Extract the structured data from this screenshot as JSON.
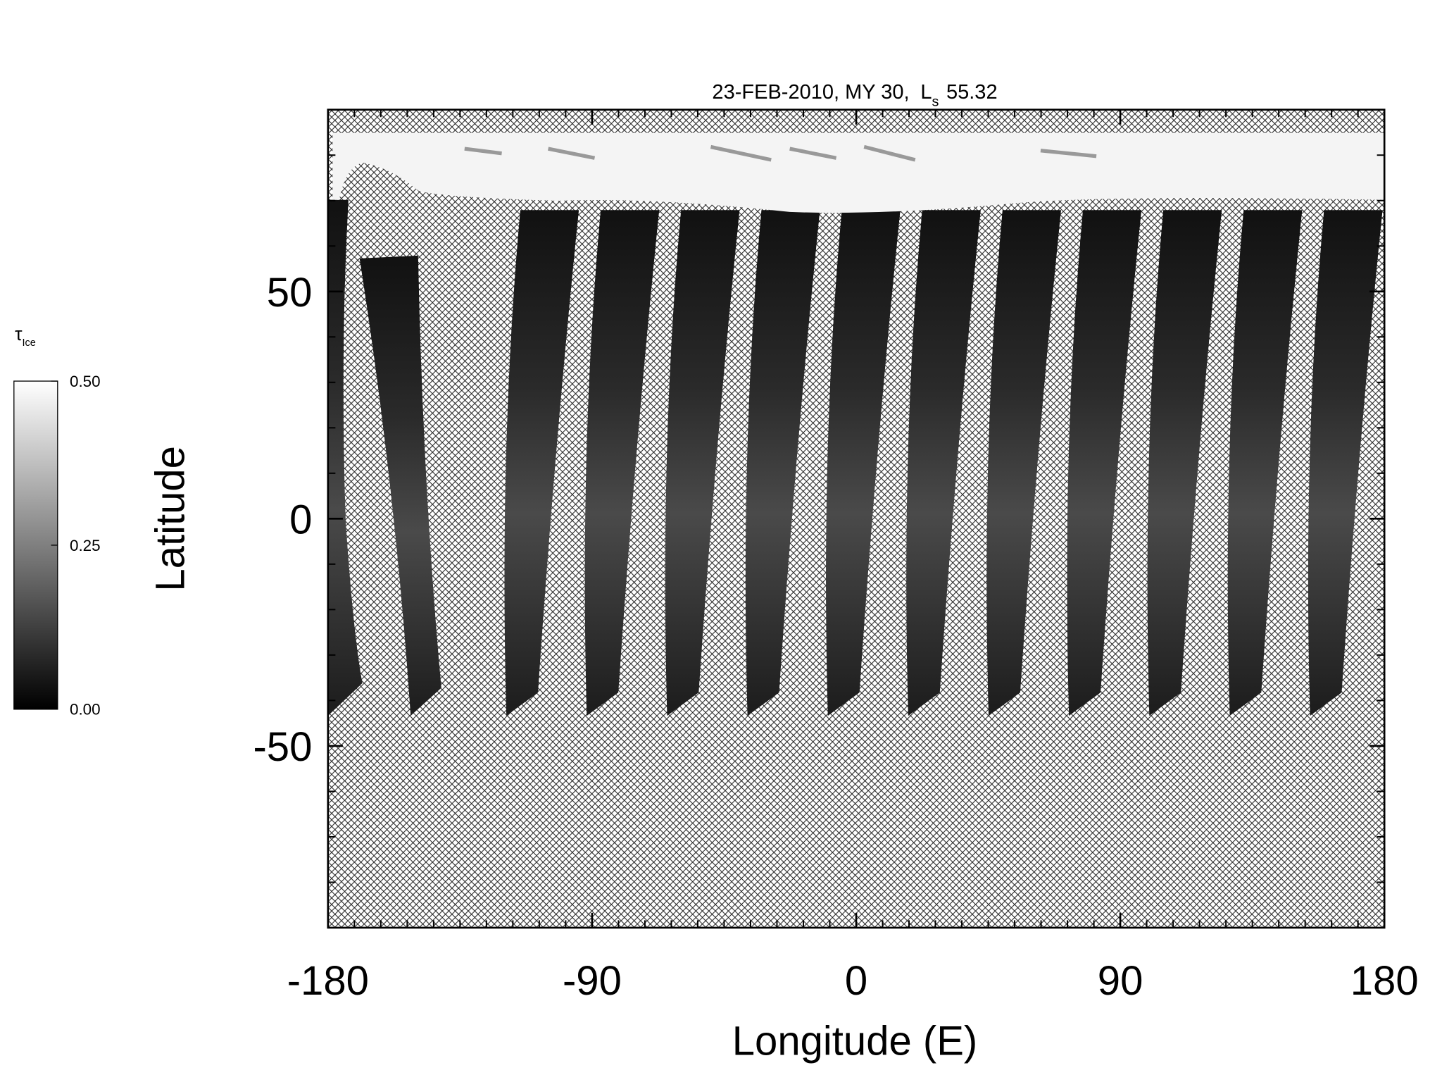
{
  "chart_data": {
    "type": "map",
    "title": "23-FEB-2010, MY 30,",
    "ls_symbol": "L",
    "ls_subscript": "s",
    "ls_value": "55.32",
    "xlabel": "Longitude (E)",
    "ylabel": "Latitude",
    "xlim": [
      -180,
      180
    ],
    "ylim": [
      -90,
      90
    ],
    "xticks": [
      -180,
      -90,
      0,
      90,
      180
    ],
    "yticks": [
      -50,
      0,
      50
    ],
    "xminorticks": [
      -171,
      -162,
      -153,
      -144,
      -135,
      -126,
      -117,
      -108,
      -99,
      -81,
      -72,
      -63,
      -54,
      -45,
      -36,
      -27,
      -18,
      -9,
      9,
      18,
      27,
      36,
      45,
      54,
      63,
      72,
      81,
      99,
      108,
      117,
      126,
      135,
      144,
      153,
      162,
      171
    ],
    "yminorticks": [
      -80,
      -70,
      -60,
      -40,
      -30,
      -20,
      -10,
      10,
      20,
      30,
      40,
      60,
      70,
      80
    ],
    "colorbar": {
      "symbol": "τ",
      "subscript": "Ice",
      "lim": [
        0,
        0.5
      ],
      "ticks": [
        {
          "value": 0,
          "label": "0.00"
        },
        {
          "value": 0.25,
          "label": "0.25"
        },
        {
          "value": 0.5,
          "label": "0.50"
        }
      ]
    }
  }
}
